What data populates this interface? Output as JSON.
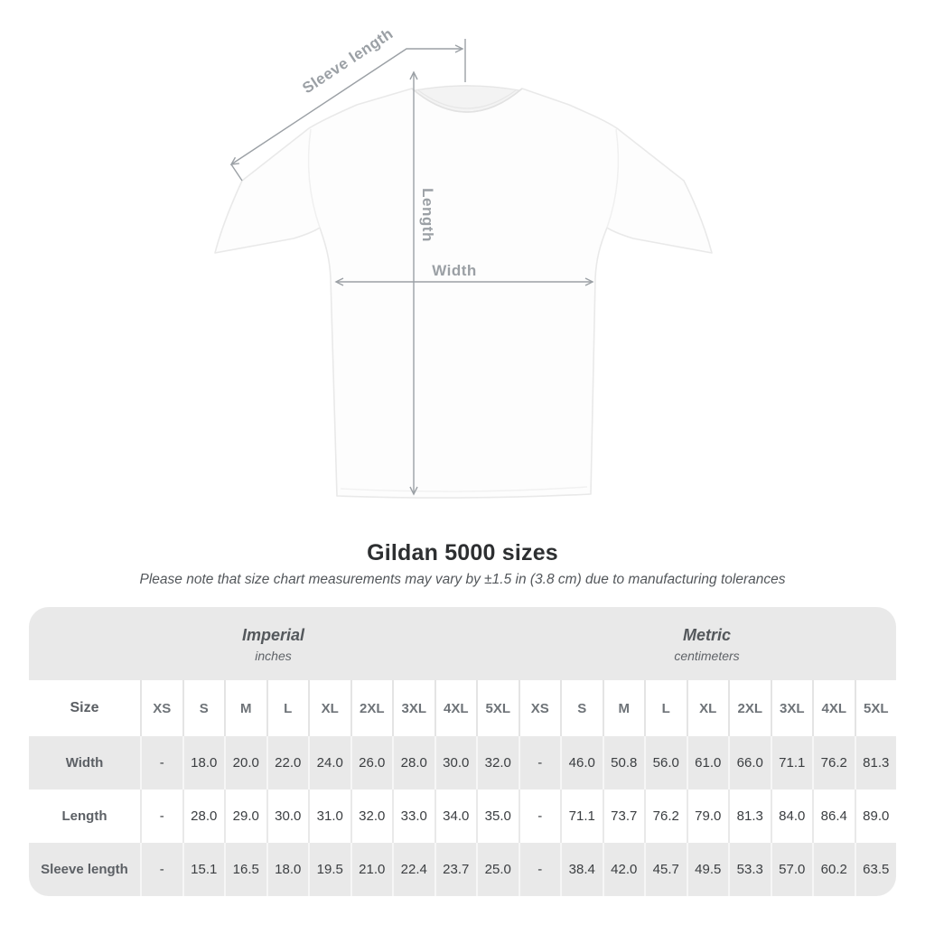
{
  "title": "Gildan 5000 sizes",
  "subtitle": "Please note that size chart measurements may vary by ±1.5 in (3.8 cm) due to manufacturing tolerances",
  "diagram": {
    "labels": {
      "sleeve_length": "Sleeve length",
      "length": "Length",
      "width": "Width"
    }
  },
  "colors": {
    "arrow_gray": "#9ba0a5",
    "band_gray": "#e9e9e9",
    "shirt_outline": "#e9e9e9"
  },
  "table": {
    "size_header": "Size",
    "groups": [
      {
        "title": "Imperial",
        "subtitle": "inches"
      },
      {
        "title": "Metric",
        "subtitle": "centimeters"
      }
    ],
    "sizes": [
      "XS",
      "S",
      "M",
      "L",
      "XL",
      "2XL",
      "3XL",
      "4XL",
      "5XL"
    ],
    "rows": [
      {
        "label": "Width",
        "imperial": [
          "-",
          "18.0",
          "20.0",
          "22.0",
          "24.0",
          "26.0",
          "28.0",
          "30.0",
          "32.0"
        ],
        "metric": [
          "-",
          "46.0",
          "50.8",
          "56.0",
          "61.0",
          "66.0",
          "71.1",
          "76.2",
          "81.3"
        ]
      },
      {
        "label": "Length",
        "imperial": [
          "-",
          "28.0",
          "29.0",
          "30.0",
          "31.0",
          "32.0",
          "33.0",
          "34.0",
          "35.0"
        ],
        "metric": [
          "-",
          "71.1",
          "73.7",
          "76.2",
          "79.0",
          "81.3",
          "84.0",
          "86.4",
          "89.0"
        ]
      },
      {
        "label": "Sleeve length",
        "imperial": [
          "-",
          "15.1",
          "16.5",
          "18.0",
          "19.5",
          "21.0",
          "22.4",
          "23.7",
          "25.0"
        ],
        "metric": [
          "-",
          "38.4",
          "42.0",
          "45.7",
          "49.5",
          "53.3",
          "57.0",
          "60.2",
          "63.5"
        ]
      }
    ]
  }
}
